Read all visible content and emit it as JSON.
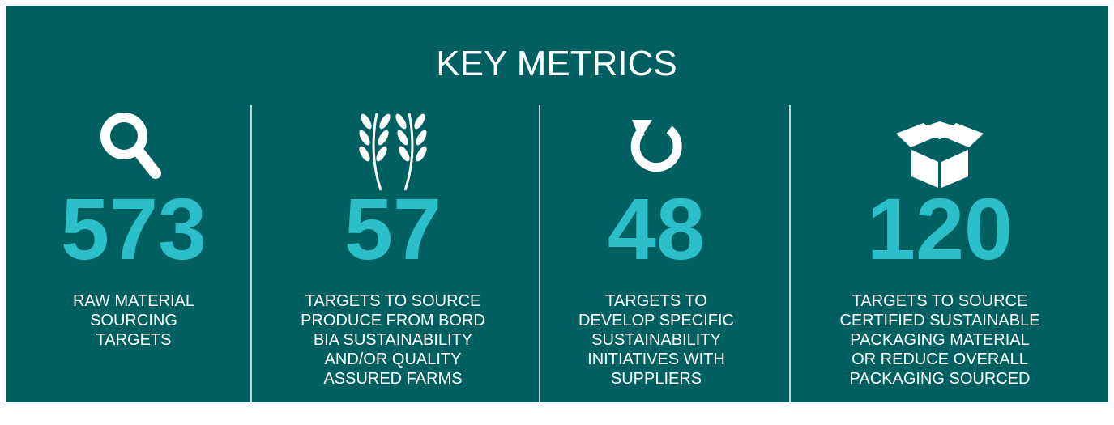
{
  "title": "KEY METRICS",
  "metrics": [
    {
      "value": 573,
      "lines": [
        "RAW MATERIAL",
        "SOURCING",
        "TARGETS"
      ]
    },
    {
      "value": 57,
      "lines": [
        "TARGETS TO SOURCE",
        "PRODUCE FROM BORD",
        "BIA SUSTAINABILITY",
        "AND/OR QUALITY",
        "ASSURED FARMS"
      ]
    },
    {
      "value": 48,
      "lines": [
        "TARGETS TO",
        "DEVELOP SPECIFIC",
        "SUSTAINABILITY",
        "INITIATIVES WITH",
        "SUPPLIERS"
      ]
    },
    {
      "value": 120,
      "lines": [
        "TARGETS TO SOURCE",
        "CERTIFIED SUSTAINABLE",
        "PACKAGING MATERIAL",
        "OR REDUCE OVERALL",
        "PACKAGING SOURCED"
      ]
    }
  ]
}
